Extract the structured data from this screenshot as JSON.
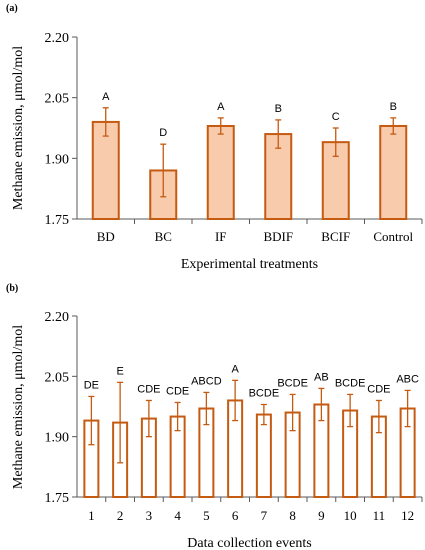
{
  "chart_data": [
    {
      "panel_label": "(a)",
      "type": "bar",
      "bar_style": "filled",
      "categories": [
        "BD",
        "BC",
        "IF",
        "BDIF",
        "BCIF",
        "Control"
      ],
      "values": [
        1.99,
        1.87,
        1.98,
        1.96,
        1.94,
        1.98
      ],
      "errors": [
        0.035,
        0.065,
        0.02,
        0.035,
        0.035,
        0.02
      ],
      "letters": [
        "A",
        "D",
        "A",
        "B",
        "C",
        "B"
      ],
      "xlabel": "Experimental treatments",
      "ylabel": "Methane emission, μmol/mol",
      "ylim": [
        1.75,
        2.2
      ],
      "yticks": [
        "1.75",
        "1.90",
        "2.05",
        "2.20"
      ],
      "grid": false
    },
    {
      "panel_label": "(b)",
      "type": "bar",
      "bar_style": "outline",
      "categories": [
        "1",
        "2",
        "3",
        "4",
        "5",
        "6",
        "7",
        "8",
        "9",
        "10",
        "11",
        "12"
      ],
      "values": [
        1.94,
        1.935,
        1.945,
        1.95,
        1.97,
        1.99,
        1.955,
        1.96,
        1.98,
        1.965,
        1.95,
        1.97
      ],
      "errors": [
        0.06,
        0.1,
        0.045,
        0.035,
        0.04,
        0.05,
        0.025,
        0.045,
        0.04,
        0.04,
        0.04,
        0.045
      ],
      "letters": [
        "DE",
        "E",
        "CDE",
        "CDE",
        "ABCD",
        "A",
        "BCDE",
        "BCDE",
        "AB",
        "BCDE",
        "CDE",
        "ABC"
      ],
      "xlabel": "Data collection events",
      "ylabel": "Methane emission, μmol/mol",
      "ylim": [
        1.75,
        2.2
      ],
      "yticks": [
        "1.75",
        "1.90",
        "2.05",
        "2.20"
      ],
      "grid": false
    }
  ],
  "colors": {
    "bar_stroke": "#c55a11",
    "bar_fill": "#f8cbad",
    "error_bar": "#c55a11",
    "axis": "#595959",
    "text": "#000000"
  }
}
